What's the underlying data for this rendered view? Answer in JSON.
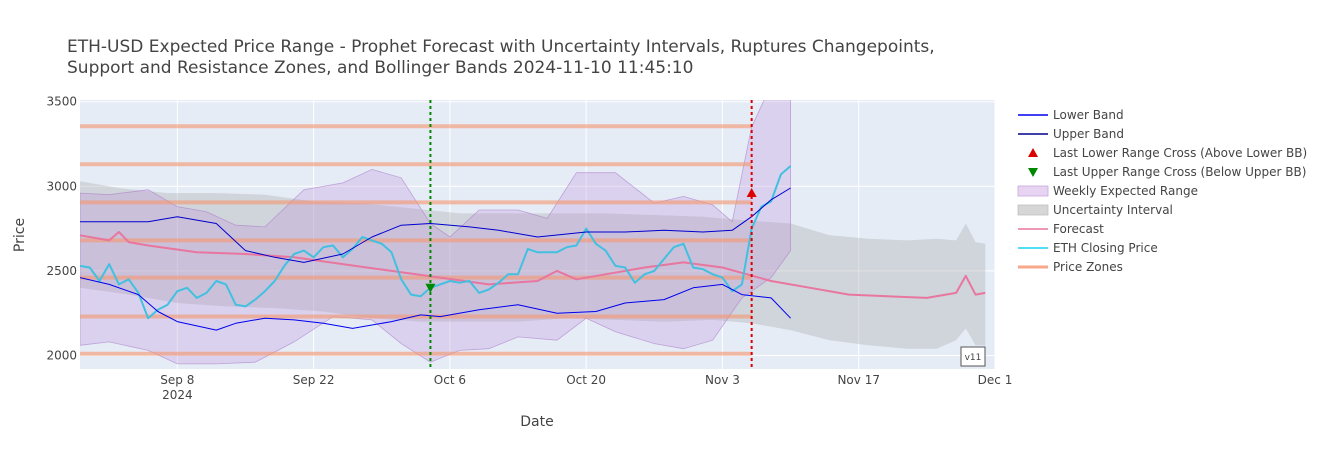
{
  "chart_data": {
    "type": "line",
    "title_line1": "ETH-USD Expected Price Range - Prophet Forecast with Uncertainty Intervals, Ruptures Changepoints,",
    "title_line2": "Support and Resistance Zones, and Bollinger Bands 2024-11-10 11:45:10",
    "xlabel": "Date",
    "ylabel": "Price",
    "xlim": [
      "2024-08-29",
      "2024-12-01"
    ],
    "ylim": [
      1920,
      3510
    ],
    "x_ticks": [
      {
        "date": "2024-09-08",
        "label": "Sep 8",
        "sub": "2024"
      },
      {
        "date": "2024-09-22",
        "label": "Sep 22",
        "sub": ""
      },
      {
        "date": "2024-10-06",
        "label": "Oct 6",
        "sub": ""
      },
      {
        "date": "2024-10-20",
        "label": "Oct 20",
        "sub": ""
      },
      {
        "date": "2024-11-03",
        "label": "Nov 3",
        "sub": ""
      },
      {
        "date": "2024-11-17",
        "label": "Nov 17",
        "sub": ""
      },
      {
        "date": "2024-12-01",
        "label": "Dec 1",
        "sub": ""
      }
    ],
    "y_ticks": [
      2000,
      2500,
      3000,
      3500
    ],
    "legend": [
      {
        "key": "lower_band",
        "label": "Lower Band",
        "symbol": "line",
        "color": "#0000ee"
      },
      {
        "key": "upper_band",
        "label": "Upper Band",
        "symbol": "line",
        "color": "#000088"
      },
      {
        "key": "lower_cross",
        "label": "Last Lower Range Cross (Above Lower BB)",
        "symbol": "triangle-up",
        "color": "#dd0000"
      },
      {
        "key": "upper_cross",
        "label": "Last Upper Range Cross (Below Upper BB)",
        "symbol": "triangle-down",
        "color": "#008800"
      },
      {
        "key": "weekly_range",
        "label": "Weekly Expected Range",
        "symbol": "band",
        "color": "#e6d4f2"
      },
      {
        "key": "uncertainty",
        "label": "Uncertainty Interval",
        "symbol": "band",
        "color": "#d6d6d6"
      },
      {
        "key": "forecast",
        "label": "Forecast",
        "symbol": "line",
        "color": "#e8769e"
      },
      {
        "key": "close",
        "label": "ETH Closing Price",
        "symbol": "line",
        "color": "#19d3f3"
      },
      {
        "key": "zones",
        "label": "Price Zones",
        "symbol": "line",
        "color": "#f7a78a"
      }
    ],
    "price_zones": [
      2010,
      2230,
      2460,
      2680,
      2905,
      3130,
      3355
    ],
    "changepoints": [
      {
        "date": "2024-10-04",
        "color": "#008800"
      },
      {
        "date": "2024-11-06",
        "color": "#dd0000"
      }
    ],
    "markers": {
      "upper_cross": {
        "date": "2024-10-04",
        "value": 2400
      },
      "lower_cross": {
        "date": "2024-11-06",
        "value": 2960
      }
    },
    "badge": "v11",
    "series": {
      "close": {
        "dates": [
          "2024-08-29",
          "2024-08-30",
          "2024-08-31",
          "2024-09-01",
          "2024-09-02",
          "2024-09-03",
          "2024-09-04",
          "2024-09-05",
          "2024-09-06",
          "2024-09-07",
          "2024-09-08",
          "2024-09-09",
          "2024-09-10",
          "2024-09-11",
          "2024-09-12",
          "2024-09-13",
          "2024-09-14",
          "2024-09-15",
          "2024-09-16",
          "2024-09-17",
          "2024-09-18",
          "2024-09-19",
          "2024-09-20",
          "2024-09-21",
          "2024-09-22",
          "2024-09-23",
          "2024-09-24",
          "2024-09-25",
          "2024-09-26",
          "2024-09-27",
          "2024-09-28",
          "2024-09-29",
          "2024-09-30",
          "2024-10-01",
          "2024-10-02",
          "2024-10-03",
          "2024-10-04",
          "2024-10-05",
          "2024-10-06",
          "2024-10-07",
          "2024-10-08",
          "2024-10-09",
          "2024-10-10",
          "2024-10-11",
          "2024-10-12",
          "2024-10-13",
          "2024-10-14",
          "2024-10-15",
          "2024-10-16",
          "2024-10-17",
          "2024-10-18",
          "2024-10-19",
          "2024-10-20",
          "2024-10-21",
          "2024-10-22",
          "2024-10-23",
          "2024-10-24",
          "2024-10-25",
          "2024-10-26",
          "2024-10-27",
          "2024-10-28",
          "2024-10-29",
          "2024-10-30",
          "2024-10-31",
          "2024-11-01",
          "2024-11-02",
          "2024-11-03",
          "2024-11-04",
          "2024-11-05",
          "2024-11-06",
          "2024-11-07",
          "2024-11-08",
          "2024-11-09",
          "2024-11-10"
        ],
        "values": [
          2530,
          2520,
          2440,
          2540,
          2420,
          2450,
          2370,
          2220,
          2270,
          2300,
          2380,
          2400,
          2340,
          2370,
          2440,
          2420,
          2300,
          2290,
          2330,
          2380,
          2440,
          2530,
          2600,
          2620,
          2580,
          2640,
          2650,
          2580,
          2630,
          2700,
          2680,
          2660,
          2610,
          2450,
          2360,
          2350,
          2400,
          2420,
          2440,
          2430,
          2440,
          2370,
          2390,
          2430,
          2480,
          2480,
          2630,
          2610,
          2610,
          2610,
          2640,
          2650,
          2750,
          2660,
          2620,
          2530,
          2520,
          2430,
          2480,
          2500,
          2570,
          2640,
          2660,
          2520,
          2510,
          2480,
          2460,
          2380,
          2420,
          2750,
          2880,
          2910,
          3070,
          3120
        ]
      },
      "lower_band": {
        "dates": [
          "2024-08-29",
          "2024-09-01",
          "2024-09-04",
          "2024-09-06",
          "2024-09-08",
          "2024-09-12",
          "2024-09-14",
          "2024-09-17",
          "2024-09-20",
          "2024-09-23",
          "2024-09-26",
          "2024-09-30",
          "2024-10-03",
          "2024-10-05",
          "2024-10-09",
          "2024-10-13",
          "2024-10-17",
          "2024-10-21",
          "2024-10-24",
          "2024-10-28",
          "2024-10-31",
          "2024-11-03",
          "2024-11-05",
          "2024-11-08",
          "2024-11-10"
        ],
        "values": [
          2460,
          2420,
          2360,
          2260,
          2200,
          2150,
          2190,
          2220,
          2210,
          2190,
          2160,
          2200,
          2240,
          2230,
          2270,
          2300,
          2250,
          2260,
          2310,
          2330,
          2400,
          2420,
          2360,
          2340,
          2220
        ]
      },
      "upper_band": {
        "dates": [
          "2024-08-29",
          "2024-09-02",
          "2024-09-05",
          "2024-09-08",
          "2024-09-12",
          "2024-09-15",
          "2024-09-18",
          "2024-09-21",
          "2024-09-25",
          "2024-09-28",
          "2024-10-01",
          "2024-10-04",
          "2024-10-08",
          "2024-10-11",
          "2024-10-15",
          "2024-10-20",
          "2024-10-24",
          "2024-10-28",
          "2024-11-01",
          "2024-11-04",
          "2024-11-06",
          "2024-11-08",
          "2024-11-10"
        ],
        "values": [
          2790,
          2790,
          2790,
          2820,
          2780,
          2620,
          2580,
          2550,
          2600,
          2700,
          2770,
          2780,
          2760,
          2740,
          2700,
          2730,
          2730,
          2740,
          2730,
          2740,
          2820,
          2920,
          2990
        ]
      },
      "forecast": {
        "dates": [
          "2024-08-29",
          "2024-09-01",
          "2024-09-02",
          "2024-09-03",
          "2024-09-05",
          "2024-09-10",
          "2024-09-15",
          "2024-09-20",
          "2024-09-25",
          "2024-09-30",
          "2024-10-05",
          "2024-10-10",
          "2024-10-15",
          "2024-10-17",
          "2024-10-19",
          "2024-10-22",
          "2024-10-26",
          "2024-10-30",
          "2024-11-03",
          "2024-11-08",
          "2024-11-12",
          "2024-11-16",
          "2024-11-20",
          "2024-11-24",
          "2024-11-27",
          "2024-11-28",
          "2024-11-29",
          "2024-11-30"
        ],
        "values": [
          2710,
          2680,
          2730,
          2670,
          2650,
          2610,
          2600,
          2580,
          2540,
          2500,
          2460,
          2420,
          2440,
          2500,
          2450,
          2480,
          2520,
          2550,
          2520,
          2440,
          2400,
          2360,
          2350,
          2340,
          2370,
          2470,
          2360,
          2370
        ]
      },
      "weekly_upper": {
        "dates": [
          "2024-08-29",
          "2024-09-01",
          "2024-09-05",
          "2024-09-08",
          "2024-09-11",
          "2024-09-14",
          "2024-09-17",
          "2024-09-21",
          "2024-09-25",
          "2024-09-28",
          "2024-10-01",
          "2024-10-04",
          "2024-10-06",
          "2024-10-09",
          "2024-10-13",
          "2024-10-16",
          "2024-10-19",
          "2024-10-23",
          "2024-10-27",
          "2024-10-30",
          "2024-11-02",
          "2024-11-04",
          "2024-11-06",
          "2024-11-08",
          "2024-11-10"
        ],
        "values": [
          2960,
          2950,
          2980,
          2880,
          2850,
          2770,
          2760,
          2980,
          3020,
          3100,
          3050,
          2780,
          2700,
          2860,
          2860,
          2810,
          3080,
          3080,
          2900,
          2940,
          2890,
          2790,
          3350,
          3600,
          3600
        ]
      },
      "weekly_lower": {
        "dates": [
          "2024-08-29",
          "2024-09-01",
          "2024-09-05",
          "2024-09-08",
          "2024-09-12",
          "2024-09-16",
          "2024-09-20",
          "2024-09-24",
          "2024-09-28",
          "2024-10-01",
          "2024-10-04",
          "2024-10-07",
          "2024-10-10",
          "2024-10-13",
          "2024-10-17",
          "2024-10-20",
          "2024-10-23",
          "2024-10-27",
          "2024-10-30",
          "2024-11-02",
          "2024-11-05",
          "2024-11-08",
          "2024-11-10"
        ],
        "values": [
          2060,
          2080,
          2030,
          1950,
          1950,
          1960,
          2080,
          2230,
          2210,
          2070,
          1960,
          2030,
          2040,
          2110,
          2090,
          2220,
          2140,
          2070,
          2040,
          2090,
          2340,
          2460,
          2620
        ]
      },
      "uncertainty_upper": {
        "dates": [
          "2024-08-29",
          "2024-09-02",
          "2024-09-07",
          "2024-09-12",
          "2024-09-17",
          "2024-09-22",
          "2024-09-27",
          "2024-10-02",
          "2024-10-07",
          "2024-10-12",
          "2024-10-17",
          "2024-10-22",
          "2024-10-27",
          "2024-11-01",
          "2024-11-05",
          "2024-11-10",
          "2024-11-14",
          "2024-11-18",
          "2024-11-22",
          "2024-11-25",
          "2024-11-27",
          "2024-11-28",
          "2024-11-29",
          "2024-11-30"
        ],
        "values": [
          3030,
          2990,
          2960,
          2960,
          2950,
          2910,
          2900,
          2870,
          2840,
          2840,
          2840,
          2840,
          2830,
          2820,
          2800,
          2780,
          2710,
          2690,
          2680,
          2690,
          2680,
          2780,
          2670,
          2660
        ]
      },
      "uncertainty_lower": {
        "dates": [
          "2024-08-29",
          "2024-09-03",
          "2024-09-08",
          "2024-09-13",
          "2024-09-18",
          "2024-09-23",
          "2024-09-28",
          "2024-10-03",
          "2024-10-08",
          "2024-10-13",
          "2024-10-18",
          "2024-10-23",
          "2024-10-28",
          "2024-11-02",
          "2024-11-06",
          "2024-11-10",
          "2024-11-14",
          "2024-11-18",
          "2024-11-22",
          "2024-11-25",
          "2024-11-27",
          "2024-11-28",
          "2024-11-29",
          "2024-11-30"
        ],
        "values": [
          2400,
          2360,
          2310,
          2290,
          2280,
          2260,
          2220,
          2200,
          2200,
          2200,
          2220,
          2210,
          2200,
          2210,
          2190,
          2150,
          2090,
          2060,
          2040,
          2040,
          2090,
          2160,
          2060,
          2060
        ]
      }
    }
  }
}
